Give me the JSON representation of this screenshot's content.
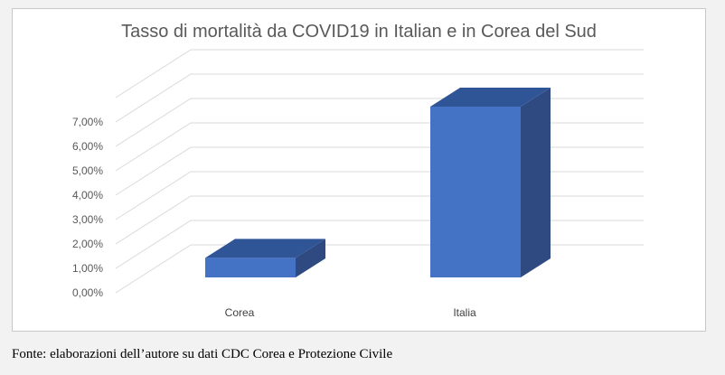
{
  "chart_data": {
    "type": "bar",
    "title": "Tasso di mortalità da COVID19 in Italian e in Corea del Sud",
    "categories": [
      "Corea",
      "Italia"
    ],
    "series": [
      {
        "values": [
          0.8,
          7.0
        ]
      }
    ],
    "y_tick_labels": [
      "0,00%",
      "1,00%",
      "2,00%",
      "3,00%",
      "4,00%",
      "5,00%",
      "6,00%",
      "7,00%"
    ],
    "ylim": [
      0,
      8
    ],
    "grid": true,
    "legend": "none",
    "style": "3d-column",
    "colors": {
      "front": "#4472c4",
      "top": "#2f5597",
      "side": "#2e4a80",
      "grid": "#d9d9d9",
      "text": "#595959"
    }
  },
  "footer": {
    "source": "Fonte: elaborazioni dell’autore su dati CDC Corea e Protezione Civile"
  }
}
